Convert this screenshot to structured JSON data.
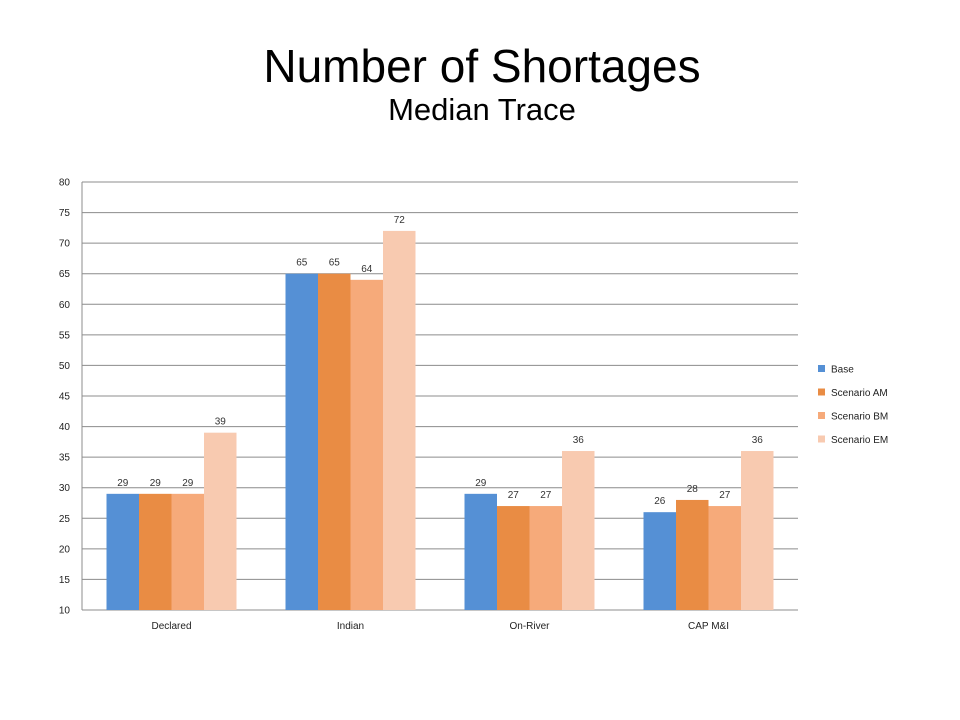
{
  "title": "Number of Shortages",
  "subtitle": "Median Trace",
  "chart_data": {
    "type": "bar",
    "title": "Number of Shortages",
    "subtitle": "Median Trace",
    "categories": [
      "Declared",
      "Indian",
      "On-River",
      "CAP M&I"
    ],
    "series": [
      {
        "name": "Base",
        "color": "#5590d5",
        "values": [
          29,
          65,
          29,
          26
        ]
      },
      {
        "name": "Scenario AM",
        "color": "#e98c44",
        "values": [
          29,
          65,
          27,
          28
        ]
      },
      {
        "name": "Scenario BM",
        "color": "#f6aa7a",
        "values": [
          29,
          64,
          27,
          27
        ]
      },
      {
        "name": "Scenario EM",
        "color": "#f8cab0",
        "values": [
          39,
          72,
          36,
          36
        ]
      }
    ],
    "ylim": [
      10,
      80
    ],
    "ytick_step": 5,
    "grid": true,
    "legend": "right",
    "xlabel": "",
    "ylabel": ""
  }
}
